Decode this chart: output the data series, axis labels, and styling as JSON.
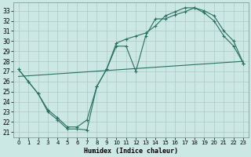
{
  "xlabel": "Humidex (Indice chaleur)",
  "bg_color": "#cce8e4",
  "grid_color": "#b0c8c4",
  "line_color": "#2a7060",
  "xlim": [
    -0.5,
    23.5
  ],
  "ylim": [
    20.5,
    33.8
  ],
  "xticks": [
    0,
    1,
    2,
    3,
    4,
    5,
    6,
    7,
    8,
    9,
    10,
    11,
    12,
    13,
    14,
    15,
    16,
    17,
    18,
    19,
    20,
    21,
    22,
    23
  ],
  "yticks": [
    21,
    22,
    23,
    24,
    25,
    26,
    27,
    28,
    29,
    30,
    31,
    32,
    33
  ],
  "curve1_x": [
    0,
    1,
    2,
    3,
    4,
    5,
    6,
    7,
    8,
    9,
    10,
    11,
    12,
    13,
    14,
    15,
    16,
    17,
    18,
    19,
    20,
    21,
    22,
    23
  ],
  "curve1_y": [
    27.2,
    26.0,
    24.8,
    23.0,
    22.2,
    21.3,
    21.3,
    21.2,
    25.5,
    27.2,
    29.5,
    29.5,
    27.0,
    30.5,
    32.2,
    32.2,
    32.6,
    32.9,
    33.3,
    33.0,
    32.5,
    31.0,
    30.0,
    27.8
  ],
  "curve2_x": [
    0,
    1,
    2,
    3,
    4,
    5,
    6,
    7,
    8,
    9,
    10,
    11,
    12,
    13,
    14,
    15,
    16,
    17,
    18,
    19,
    20,
    21,
    22,
    23
  ],
  "curve2_y": [
    27.2,
    26.0,
    24.8,
    23.2,
    22.4,
    21.5,
    21.5,
    22.2,
    25.5,
    27.2,
    29.8,
    30.2,
    30.5,
    30.8,
    31.5,
    32.5,
    32.9,
    33.3,
    33.3,
    32.8,
    32.0,
    30.5,
    29.5,
    27.8
  ],
  "line3_x": [
    0,
    23
  ],
  "line3_y": [
    26.5,
    28.0
  ]
}
